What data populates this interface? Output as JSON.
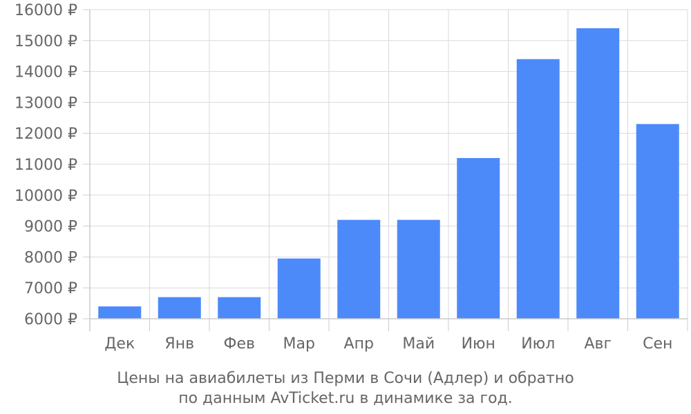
{
  "chart_data": {
    "type": "bar",
    "categories": [
      "Дек",
      "Янв",
      "Фев",
      "Мар",
      "Апр",
      "Май",
      "Июн",
      "Июл",
      "Авг",
      "Сен"
    ],
    "values": [
      6400,
      6700,
      6700,
      7950,
      9200,
      9200,
      11200,
      14400,
      15400,
      12300
    ],
    "ylim": [
      6000,
      16000
    ],
    "y_ticks": [
      {
        "value": 6000,
        "label": "6000 ₽"
      },
      {
        "value": 7000,
        "label": "7000 ₽"
      },
      {
        "value": 8000,
        "label": "8000 ₽"
      },
      {
        "value": 9000,
        "label": "9000 ₽"
      },
      {
        "value": 10000,
        "label": "10000 ₽"
      },
      {
        "value": 11000,
        "label": "11000 ₽"
      },
      {
        "value": 12000,
        "label": "12000 ₽"
      },
      {
        "value": 13000,
        "label": "13000 ₽"
      },
      {
        "value": 14000,
        "label": "14000 ₽"
      },
      {
        "value": 15000,
        "label": "15000 ₽"
      },
      {
        "value": 16000,
        "label": "16000 ₽"
      }
    ],
    "grid": true,
    "bar_color": "#4d8af9",
    "caption_lines": [
      "Цены на авиабилеты из Перми в Сочи (Адлер) и обратно",
      "по данным AvTicket.ru в динамике за год."
    ]
  }
}
